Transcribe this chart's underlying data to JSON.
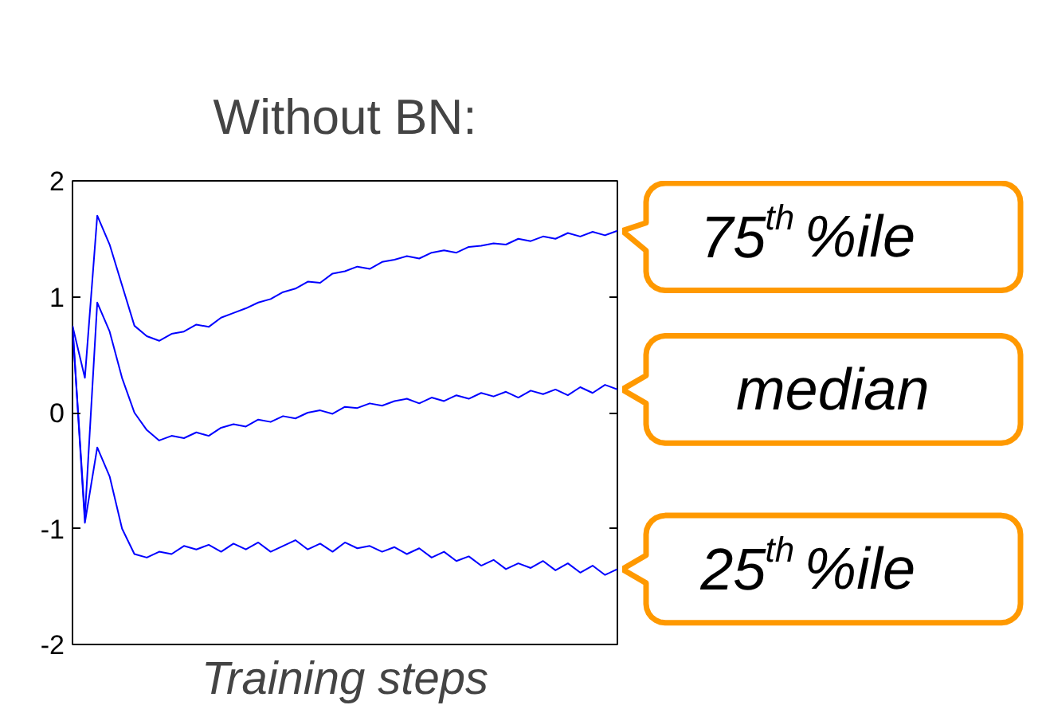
{
  "chart_data": {
    "type": "line",
    "title": "Without BN:",
    "xlabel": "Training steps",
    "categories": [
      null,
      null,
      null,
      null,
      null,
      null,
      null,
      null,
      null,
      null,
      null,
      null,
      null,
      null,
      null,
      null,
      null,
      null,
      null,
      null,
      null,
      null,
      null,
      null,
      null,
      null,
      null,
      null,
      null,
      null,
      null,
      null,
      null,
      null,
      null,
      null,
      null,
      null,
      null,
      null,
      null,
      null,
      null,
      null,
      null
    ],
    "ylim": [
      -2,
      2
    ],
    "yticks": [
      -2,
      -1,
      0,
      1,
      2
    ],
    "grid": false,
    "tick_labels": "y",
    "series": [
      {
        "name": "75$^{th}$ %ile",
        "color": "#0000ff",
        "values": [
          0.75,
          0.3,
          1.7,
          1.45,
          1.1,
          0.75,
          0.66,
          0.62,
          0.68,
          0.7,
          0.76,
          0.74,
          0.82,
          0.86,
          0.9,
          0.95,
          0.98,
          1.04,
          1.07,
          1.13,
          1.12,
          1.2,
          1.22,
          1.26,
          1.24,
          1.3,
          1.32,
          1.35,
          1.33,
          1.38,
          1.4,
          1.38,
          1.43,
          1.44,
          1.46,
          1.45,
          1.5,
          1.48,
          1.52,
          1.5,
          1.55,
          1.52,
          1.56,
          1.53,
          1.57
        ]
      },
      {
        "name": "median",
        "color": "#0000ff",
        "values": [
          0.75,
          -0.9,
          0.95,
          0.7,
          0.3,
          0.0,
          -0.15,
          -0.24,
          -0.2,
          -0.22,
          -0.17,
          -0.2,
          -0.13,
          -0.1,
          -0.12,
          -0.06,
          -0.08,
          -0.03,
          -0.05,
          0.0,
          0.02,
          -0.01,
          0.05,
          0.04,
          0.08,
          0.06,
          0.1,
          0.12,
          0.08,
          0.13,
          0.1,
          0.15,
          0.12,
          0.17,
          0.14,
          0.18,
          0.13,
          0.19,
          0.16,
          0.2,
          0.15,
          0.22,
          0.17,
          0.24,
          0.2
        ]
      },
      {
        "name": "25$^{th}$ %ile",
        "color": "#0000ff",
        "values": [
          0.75,
          -0.95,
          -0.3,
          -0.55,
          -1.0,
          -1.22,
          -1.25,
          -1.2,
          -1.22,
          -1.15,
          -1.18,
          -1.14,
          -1.2,
          -1.13,
          -1.18,
          -1.12,
          -1.2,
          -1.15,
          -1.1,
          -1.18,
          -1.13,
          -1.2,
          -1.12,
          -1.17,
          -1.15,
          -1.2,
          -1.16,
          -1.22,
          -1.17,
          -1.25,
          -1.2,
          -1.28,
          -1.24,
          -1.32,
          -1.27,
          -1.35,
          -1.3,
          -1.34,
          -1.28,
          -1.36,
          -1.3,
          -1.38,
          -1.32,
          -1.4,
          -1.35
        ]
      }
    ]
  }
}
